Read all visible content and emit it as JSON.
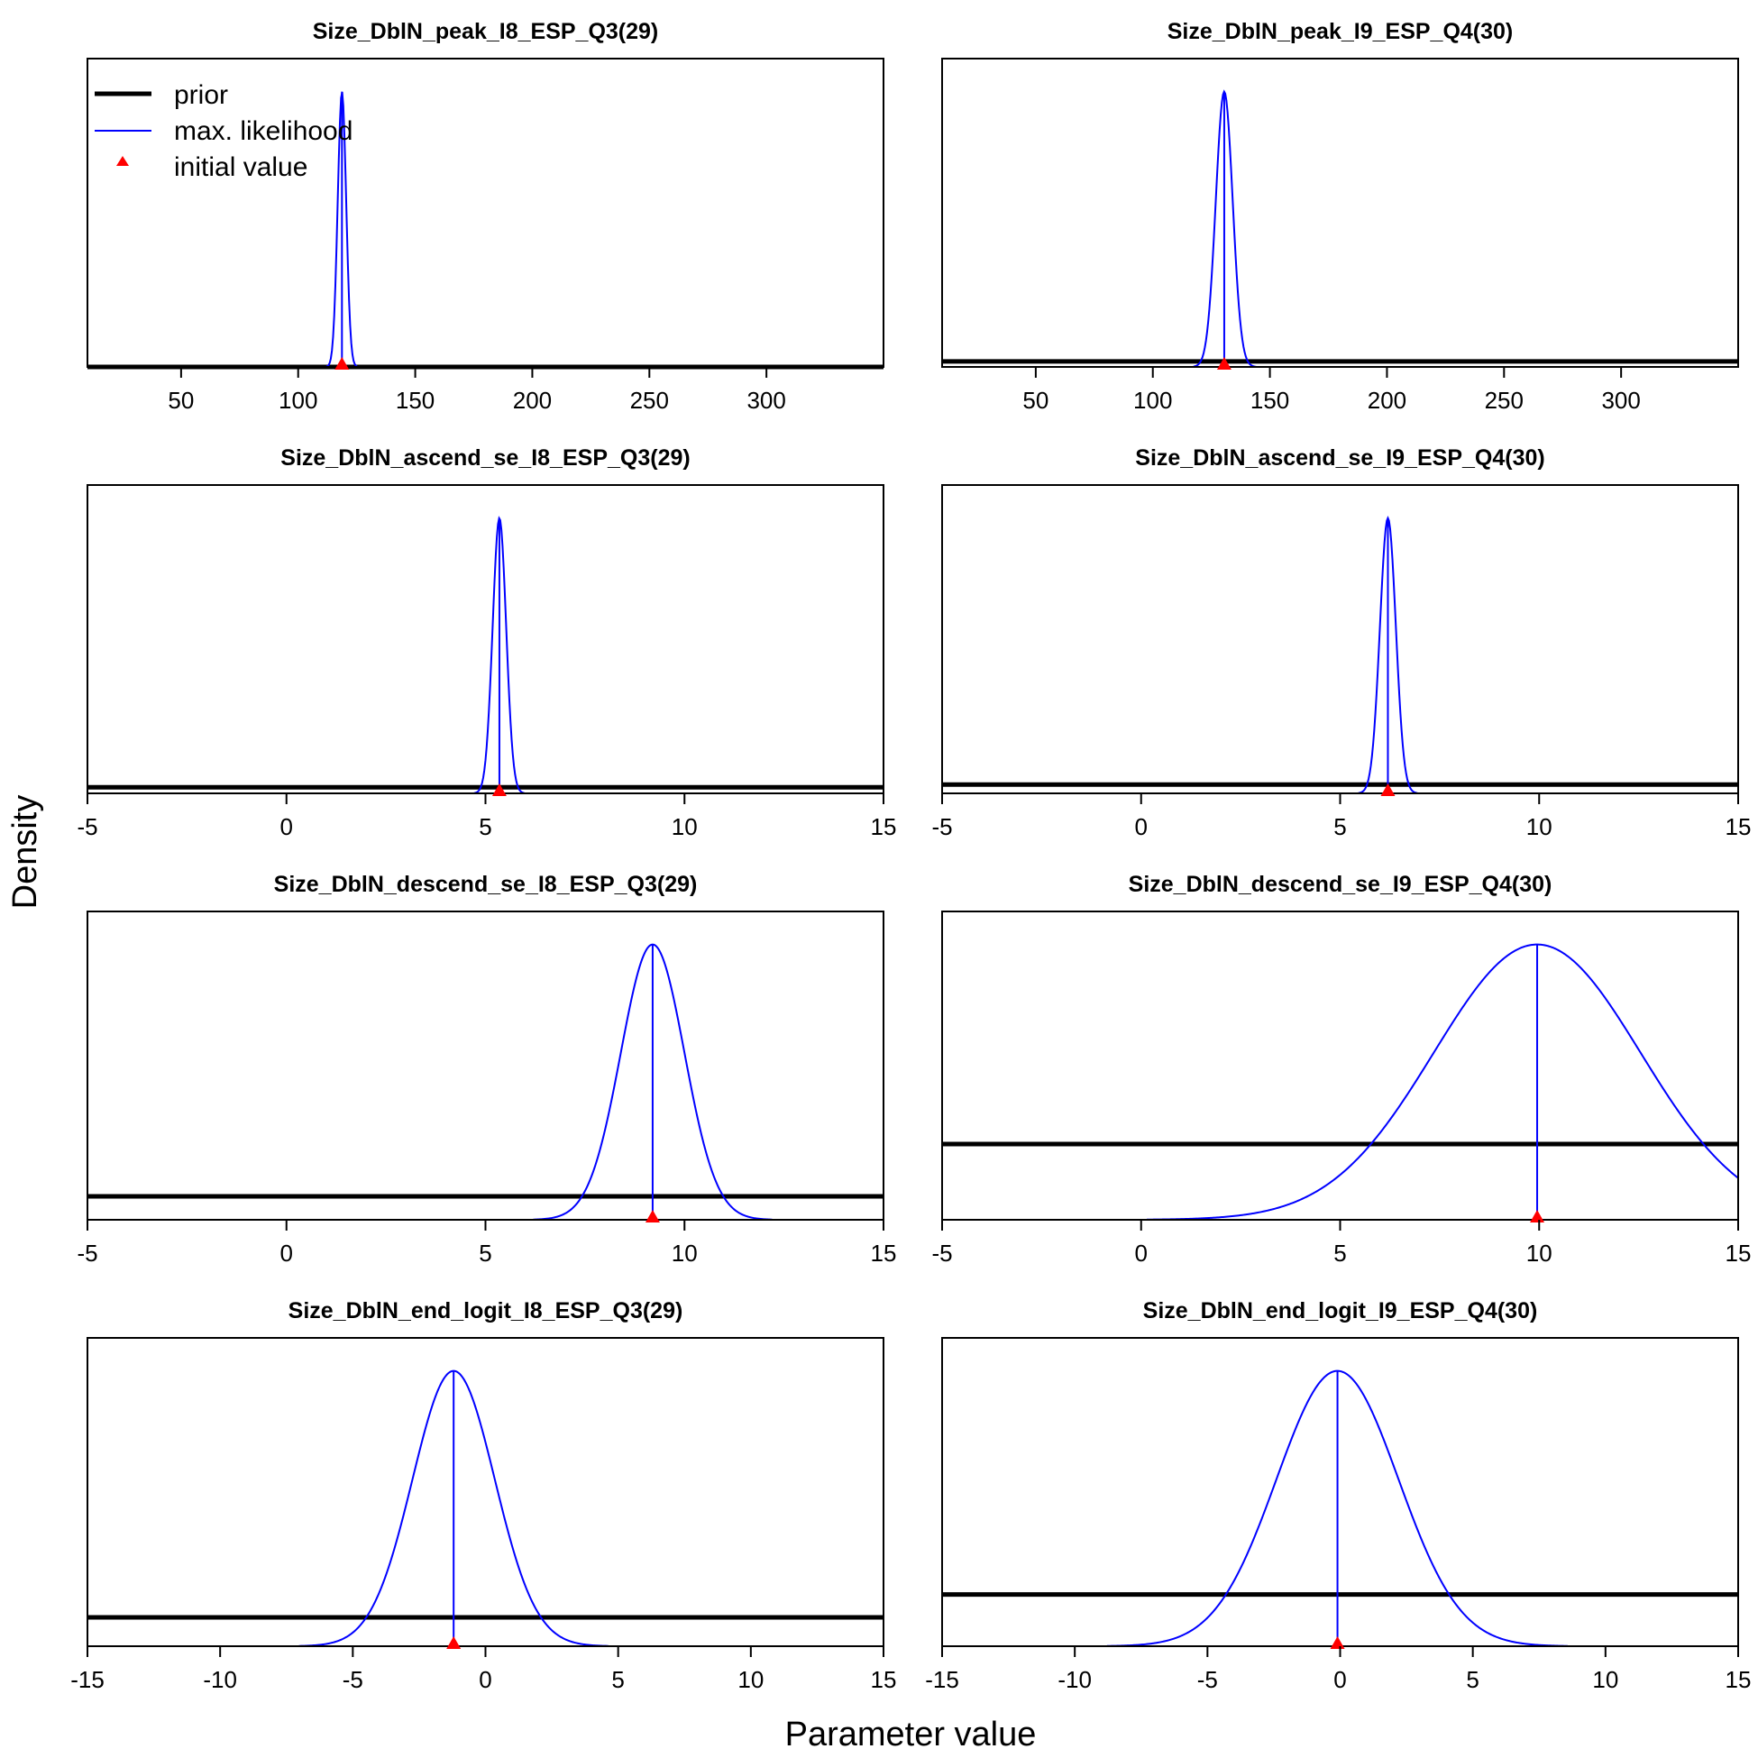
{
  "figure": {
    "ylabel": "Density",
    "xlabel": "Parameter value",
    "legend": {
      "position": "top-left",
      "entries": [
        {
          "label": "prior",
          "style": "black thick line"
        },
        {
          "label": "max. likelihood",
          "style": "blue line"
        },
        {
          "label": "initial value",
          "style": "red triangle"
        }
      ]
    },
    "colors": {
      "prior": "#000000",
      "mle": "#0000ff",
      "initial": "#ff0000"
    }
  },
  "chart_data": [
    {
      "type": "line",
      "title": "Size_DblN_peak_I8_ESP_Q3(29)",
      "xlim": [
        10,
        350
      ],
      "ticks": [
        50,
        100,
        150,
        200,
        250,
        300
      ],
      "prior_level": 0.0,
      "mle": {
        "mean": 118.7,
        "sd": 1.8
      },
      "initial": 118.7
    },
    {
      "type": "line",
      "title": "Size_DblN_peak_I9_ESP_Q4(30)",
      "xlim": [
        10,
        350
      ],
      "ticks": [
        50,
        100,
        150,
        200,
        250,
        300
      ],
      "prior_level": 0.02,
      "mle": {
        "mean": 130.5,
        "sd": 3.6
      },
      "initial": 130.5
    },
    {
      "type": "line",
      "title": "Size_DblN_ascend_se_I8_ESP_Q3(29)",
      "xlim": [
        -5,
        15
      ],
      "ticks": [
        -5,
        0,
        5,
        10,
        15
      ],
      "prior_level": 0.022,
      "mle": {
        "mean": 5.35,
        "sd": 0.17
      },
      "initial": 5.35
    },
    {
      "type": "line",
      "title": "Size_DblN_ascend_se_I9_ESP_Q4(30)",
      "xlim": [
        -5,
        15
      ],
      "ticks": [
        -5,
        0,
        5,
        10,
        15
      ],
      "prior_level": 0.032,
      "mle": {
        "mean": 6.2,
        "sd": 0.2
      },
      "initial": 6.2
    },
    {
      "type": "line",
      "title": "Size_DblN_descend_se_I8_ESP_Q3(29)",
      "xlim": [
        -5,
        15
      ],
      "ticks": [
        -5,
        0,
        5,
        10,
        15
      ],
      "prior_level": 0.085,
      "mle": {
        "mean": 9.2,
        "sd": 0.8
      },
      "initial": 9.2
    },
    {
      "type": "line",
      "title": "Size_DblN_descend_se_I9_ESP_Q4(30)",
      "xlim": [
        -5,
        15
      ],
      "ticks": [
        -5,
        0,
        5,
        10,
        15
      ],
      "prior_level": 0.275,
      "mle": {
        "mean": 9.95,
        "sd": 2.6
      },
      "initial": 9.95
    },
    {
      "type": "line",
      "title": "Size_DblN_end_logit_I8_ESP_Q3(29)",
      "xlim": [
        -15,
        15
      ],
      "ticks": [
        -15,
        -10,
        -5,
        0,
        5,
        10,
        15
      ],
      "prior_level": 0.105,
      "mle": {
        "mean": -1.2,
        "sd": 1.55
      },
      "initial": -1.2
    },
    {
      "type": "line",
      "title": "Size_DblN_end_logit_I9_ESP_Q4(30)",
      "xlim": [
        -15,
        15
      ],
      "ticks": [
        -15,
        -10,
        -5,
        0,
        5,
        10,
        15
      ],
      "prior_level": 0.188,
      "mle": {
        "mean": -0.1,
        "sd": 2.3
      },
      "initial": -0.1
    }
  ]
}
